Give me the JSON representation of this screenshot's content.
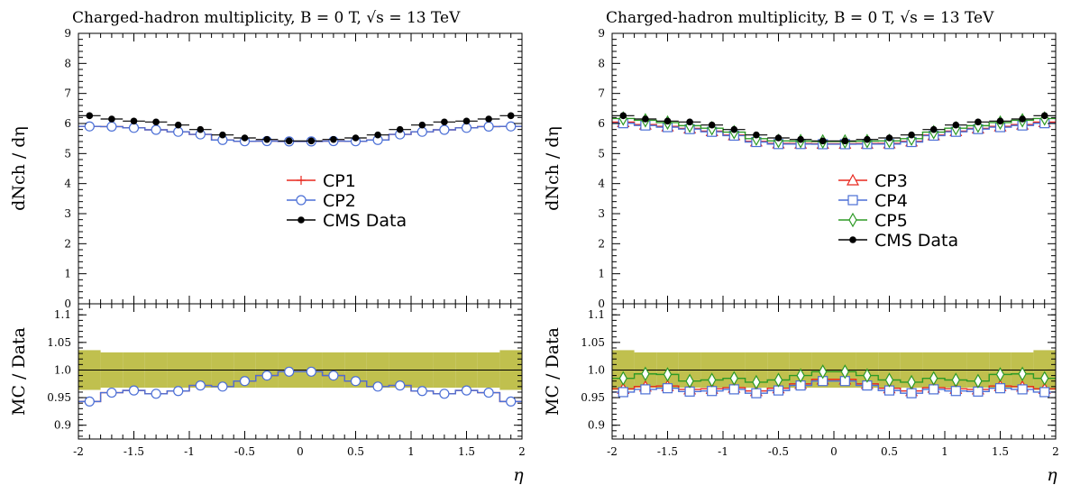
{
  "chart_data": [
    {
      "type": "line",
      "title": "Charged-hadron multiplicity, B = 0 T, √s = 13 TeV",
      "ylabel": "dNch / dη",
      "ratio_ylabel": "MC / Data",
      "xlabel": "η",
      "xlim": [
        -2,
        2
      ],
      "ylim": [
        0,
        9
      ],
      "ratio_ylim": [
        0.875,
        1.12
      ],
      "x_ticks": [
        "-2",
        "-1.5",
        "-1",
        "-0.5",
        "0",
        "0.5",
        "1",
        "1.5",
        "2"
      ],
      "y_ticks": [
        "0",
        "1",
        "2",
        "3",
        "4",
        "5",
        "6",
        "7",
        "8",
        "9"
      ],
      "ratio_y_ticks": [
        "0.9",
        "0.95",
        "1.0",
        "1.05",
        "1.1"
      ],
      "legend": "center",
      "band_color": "#b5b52f",
      "bin_edges": [
        -2.0,
        -1.8,
        -1.6,
        -1.4,
        -1.2,
        -1.0,
        -0.8,
        -0.6,
        -0.4,
        -0.2,
        0.0,
        0.2,
        0.4,
        0.6,
        0.8,
        1.0,
        1.2,
        1.4,
        1.6,
        1.8,
        2.0
      ],
      "data": {
        "name": "CMS Data",
        "color": "#000000",
        "values": [
          6.26,
          6.15,
          6.08,
          6.05,
          5.95,
          5.8,
          5.62,
          5.52,
          5.47,
          5.42,
          5.42,
          5.47,
          5.52,
          5.62,
          5.8,
          5.95,
          6.05,
          6.08,
          6.15,
          6.26
        ],
        "rel_error": [
          0.036,
          0.032,
          0.032,
          0.032,
          0.032,
          0.032,
          0.032,
          0.032,
          0.032,
          0.032,
          0.032,
          0.032,
          0.032,
          0.032,
          0.032,
          0.032,
          0.032,
          0.032,
          0.032,
          0.036
        ]
      },
      "series": [
        {
          "name": "CP1",
          "color": "#e8281f",
          "marker": "plus",
          "ratio": [
            0.943,
            0.959,
            0.963,
            0.957,
            0.962,
            0.972,
            0.97,
            0.98,
            0.99,
            0.997,
            0.997,
            0.99,
            0.98,
            0.97,
            0.972,
            0.962,
            0.957,
            0.963,
            0.959,
            0.943
          ]
        },
        {
          "name": "CP2",
          "color": "#4b6fd6",
          "marker": "circle",
          "ratio": [
            0.943,
            0.959,
            0.963,
            0.957,
            0.962,
            0.972,
            0.97,
            0.98,
            0.99,
            0.997,
            0.997,
            0.99,
            0.98,
            0.97,
            0.972,
            0.962,
            0.957,
            0.963,
            0.959,
            0.943
          ]
        }
      ]
    },
    {
      "type": "line",
      "title": "Charged-hadron multiplicity, B = 0 T, √s = 13 TeV",
      "ylabel": "dNch / dη",
      "ratio_ylabel": "MC / Data",
      "xlabel": "η",
      "xlim": [
        -2,
        2
      ],
      "ylim": [
        0,
        9
      ],
      "ratio_ylim": [
        0.875,
        1.12
      ],
      "x_ticks": [
        "-2",
        "-1.5",
        "-1",
        "-0.5",
        "0",
        "0.5",
        "1",
        "1.5",
        "2"
      ],
      "y_ticks": [
        "0",
        "1",
        "2",
        "3",
        "4",
        "5",
        "6",
        "7",
        "8",
        "9"
      ],
      "ratio_y_ticks": [
        "0.9",
        "0.95",
        "1.0",
        "1.05",
        "1.1"
      ],
      "legend": "center",
      "band_color": "#b5b52f",
      "bin_edges": [
        -2.0,
        -1.8,
        -1.6,
        -1.4,
        -1.2,
        -1.0,
        -0.8,
        -0.6,
        -0.4,
        -0.2,
        0.0,
        0.2,
        0.4,
        0.6,
        0.8,
        1.0,
        1.2,
        1.4,
        1.6,
        1.8,
        2.0
      ],
      "data": {
        "name": "CMS Data",
        "color": "#000000",
        "values": [
          6.26,
          6.15,
          6.08,
          6.05,
          5.95,
          5.8,
          5.62,
          5.52,
          5.47,
          5.42,
          5.42,
          5.47,
          5.52,
          5.62,
          5.8,
          5.95,
          6.05,
          6.08,
          6.15,
          6.26
        ],
        "rel_error": [
          0.036,
          0.032,
          0.032,
          0.032,
          0.032,
          0.032,
          0.032,
          0.032,
          0.032,
          0.032,
          0.032,
          0.032,
          0.032,
          0.032,
          0.032,
          0.032,
          0.032,
          0.032,
          0.032,
          0.036
        ]
      },
      "series": [
        {
          "name": "CP3",
          "color": "#e8281f",
          "marker": "triangle",
          "ratio": [
            0.966,
            0.97,
            0.971,
            0.965,
            0.966,
            0.968,
            0.962,
            0.967,
            0.975,
            0.983,
            0.983,
            0.975,
            0.967,
            0.962,
            0.968,
            0.966,
            0.965,
            0.971,
            0.97,
            0.966
          ]
        },
        {
          "name": "CP4",
          "color": "#4b6fd6",
          "marker": "square",
          "ratio": [
            0.96,
            0.965,
            0.967,
            0.961,
            0.962,
            0.965,
            0.958,
            0.963,
            0.972,
            0.98,
            0.98,
            0.972,
            0.963,
            0.958,
            0.965,
            0.962,
            0.961,
            0.967,
            0.965,
            0.96
          ]
        },
        {
          "name": "CP5",
          "color": "#2e9a26",
          "marker": "diamond",
          "ratio": [
            0.985,
            0.993,
            0.992,
            0.98,
            0.982,
            0.985,
            0.978,
            0.982,
            0.99,
            0.997,
            0.997,
            0.99,
            0.982,
            0.978,
            0.985,
            0.982,
            0.98,
            0.992,
            0.993,
            0.985
          ]
        }
      ]
    }
  ]
}
